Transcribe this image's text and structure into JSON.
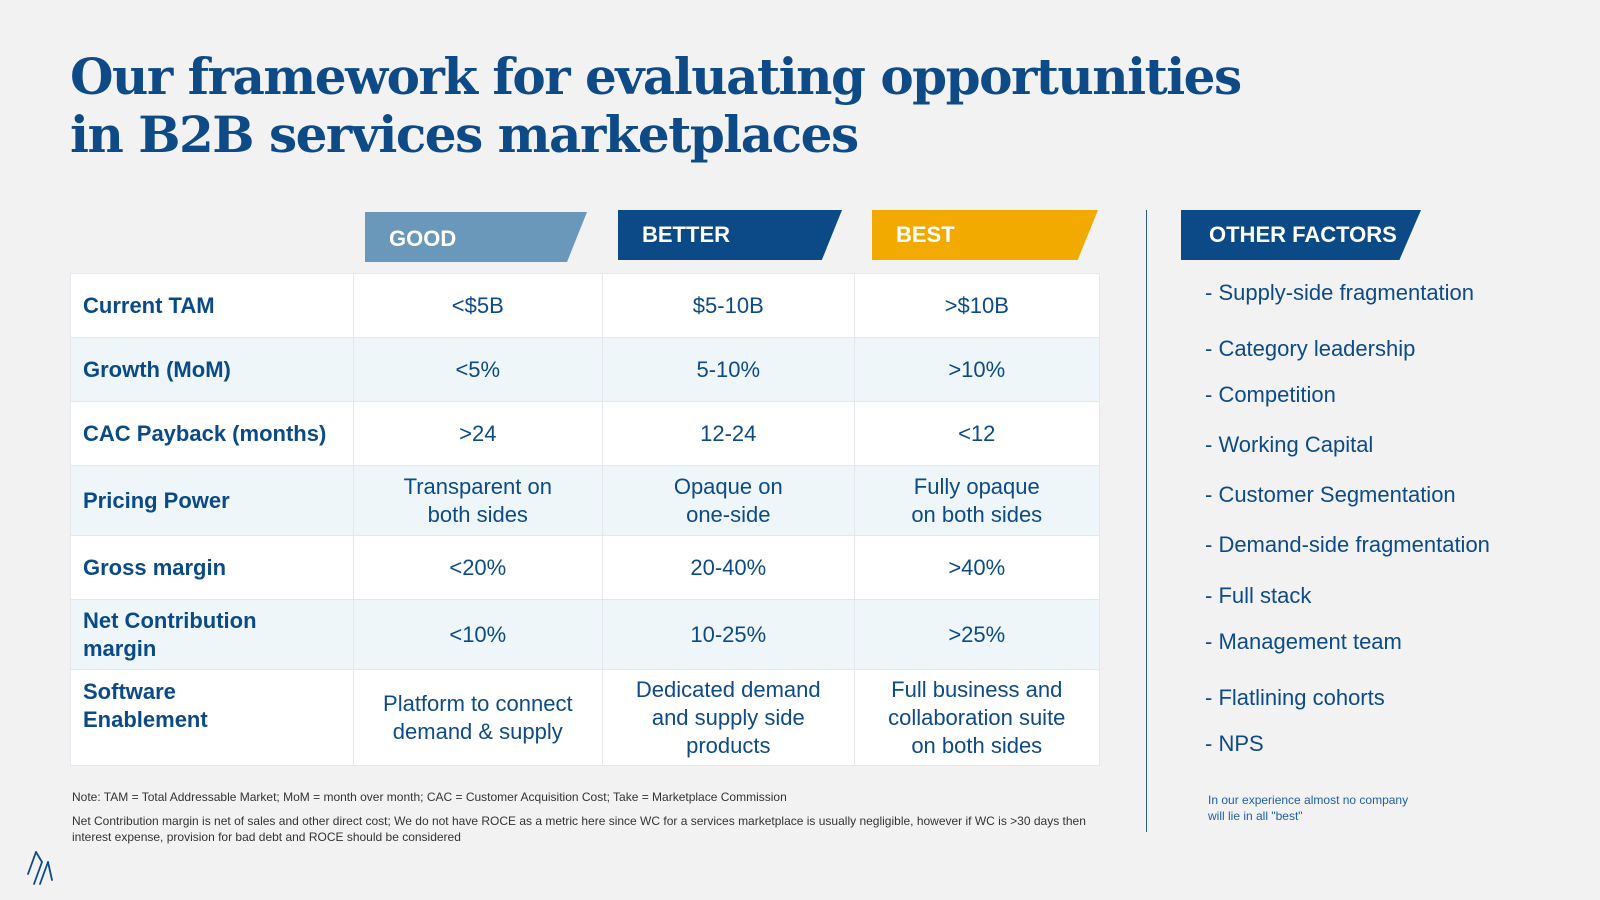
{
  "title": {
    "line1": "Our framework for evaluating opportunities",
    "line2": "in B2B services marketplaces"
  },
  "headers": {
    "good": "GOOD",
    "better": "BETTER",
    "best": "BEST"
  },
  "rows": [
    {
      "label": "Current TAM",
      "good": "<$5B",
      "better": "$5-10B",
      "best": ">$10B"
    },
    {
      "label": "Growth (MoM)",
      "good": "<5%",
      "better": "5-10%",
      "best": ">10%"
    },
    {
      "label": "CAC Payback (months)",
      "good": ">24",
      "better": "12-24",
      "best": "<12"
    },
    {
      "label": "Pricing Power",
      "good": [
        "Transparent on",
        "both sides"
      ],
      "better": [
        "Opaque on",
        "one-side"
      ],
      "best": [
        "Fully opaque",
        "on both sides"
      ]
    },
    {
      "label": "Gross margin",
      "good": "<20%",
      "better": "20-40%",
      "best": ">40%"
    },
    {
      "label": [
        "Net Contribution",
        "margin"
      ],
      "good": "<10%",
      "better": "10-25%",
      "best": ">25%"
    },
    {
      "label": [
        "Software",
        "Enablement"
      ],
      "good": [
        "Platform to connect",
        "demand & supply"
      ],
      "better": [
        "Dedicated demand",
        "and supply side",
        "products"
      ],
      "best": [
        "Full business and",
        "collaboration suite",
        "on both sides"
      ]
    }
  ],
  "other_factors": {
    "title": "OTHER FACTORS",
    "items": [
      "- Supply-side fragmentation",
      "- Category leadership",
      "- Competition",
      "- Working Capital",
      "- Customer Segmentation",
      "- Demand-side fragmentation",
      "- Full stack",
      "- Management team",
      "- Flatlining cohorts",
      "- NPS"
    ],
    "remark": [
      "In our experience almost no company",
      "will lie in all \"best\""
    ]
  },
  "notes": {
    "line1": "Note: TAM = Total Addressable Market; MoM = month over month; CAC = Customer Acquisition Cost; Take = Marketplace Commission",
    "line2": "Net Contribution margin is net of sales and other direct cost; We do not have ROCE as a metric here since WC for a services marketplace is usually negligible, however if WC is >30 days then interest expense, provision for bad debt and  ROCE should be considered"
  },
  "colors": {
    "good": "#6a98bb",
    "better": "#0b4a86",
    "best": "#f2a900",
    "brand": "#0d4a86"
  }
}
